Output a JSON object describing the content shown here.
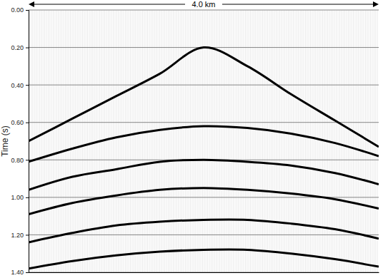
{
  "chart_data": {
    "type": "line",
    "ylabel": "Time (s)",
    "annotation": "4.0 km",
    "x": [
      0,
      0.5,
      1.0,
      1.5,
      2.0,
      2.5,
      3.0,
      3.5,
      4.0
    ],
    "xlim": [
      0,
      4.0
    ],
    "ylim": [
      0,
      1.4
    ],
    "yticks": [
      {
        "value": 0,
        "label": "0.00"
      },
      {
        "value": 0.2,
        "label": "0.20"
      },
      {
        "value": 0.4,
        "label": "0.40"
      },
      {
        "value": 0.6,
        "label": "0.60"
      },
      {
        "value": 0.8,
        "label": "0.80"
      },
      {
        "value": 1.0,
        "label": "1.00"
      },
      {
        "value": 1.2,
        "label": "1.20"
      },
      {
        "value": 1.4,
        "label": "1.40"
      }
    ],
    "grid": true,
    "tick_labels": "y",
    "series": [
      {
        "color": "#000000",
        "values": [
          0.7,
          0.58,
          0.46,
          0.34,
          0.2,
          0.3,
          0.45,
          0.59,
          0.73
        ]
      },
      {
        "color": "#000000",
        "values": [
          0.81,
          0.74,
          0.68,
          0.64,
          0.62,
          0.63,
          0.66,
          0.71,
          0.78
        ]
      },
      {
        "color": "#000000",
        "values": [
          0.96,
          0.89,
          0.85,
          0.81,
          0.8,
          0.81,
          0.83,
          0.87,
          0.93
        ]
      },
      {
        "color": "#000000",
        "values": [
          1.09,
          1.03,
          0.99,
          0.96,
          0.95,
          0.96,
          0.98,
          1.01,
          1.06
        ]
      },
      {
        "color": "#000000",
        "values": [
          1.24,
          1.19,
          1.15,
          1.13,
          1.12,
          1.12,
          1.14,
          1.17,
          1.22
        ]
      },
      {
        "color": "#000000",
        "values": [
          1.38,
          1.34,
          1.31,
          1.29,
          1.28,
          1.28,
          1.3,
          1.33,
          1.37
        ]
      }
    ]
  }
}
